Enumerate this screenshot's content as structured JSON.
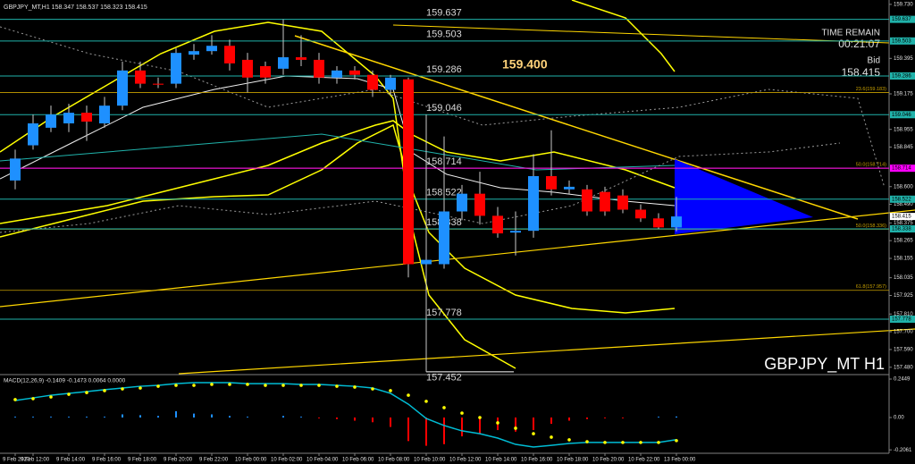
{
  "chart_data": [
    {
      "type": "candlestick",
      "title": "GBPJPY_MT,H1  158.347 158.537 158.323 158.415",
      "watermark": "GBPJPY_MT H1",
      "time_remain_label": "TIME REMAIN",
      "time_remain": "00:21:07",
      "bid_label": "Bid",
      "bid": 158.415,
      "annotation": "159.400",
      "categories": [
        "9 Feb 2023",
        "9 Feb 12:00",
        null,
        "9 Feb 14:00",
        null,
        "9 Feb 16:00",
        null,
        "9 Feb 18:00",
        null,
        "9 Feb 20:00",
        null,
        "9 Feb 22:00",
        null,
        "10 Feb 00:00",
        null,
        "10 Feb 02:00",
        null,
        "10 Feb 04:00",
        null,
        "10 Feb 06:00",
        null,
        "10 Feb 08:00",
        null,
        "10 Feb 10:00",
        null,
        "10 Feb 12:00",
        null,
        "10 Feb 14:00",
        null,
        "10 Feb 16:00",
        null,
        "10 Feb 18:00",
        null,
        "10 Feb 20:00",
        null,
        "10 Feb 22:00",
        null,
        "13 Feb 00:00"
      ],
      "open": [
        158.638,
        158.856,
        158.965,
        158.992,
        159.058,
        158.992,
        159.102,
        159.32,
        159.238,
        159.238,
        159.418,
        159.44,
        159.473,
        159.386,
        159.347,
        159.331,
        159.402,
        159.386,
        159.276,
        159.32,
        159.293,
        159.2,
        159.265,
        158.119,
        158.119,
        158.446,
        158.556,
        158.419,
        158.315,
        158.326,
        158.665,
        158.583,
        158.583,
        158.567,
        158.545,
        158.457,
        158.403,
        158.347
      ],
      "high": [
        158.829,
        159.047,
        159.102,
        159.113,
        159.102,
        159.156,
        159.375,
        159.375,
        159.276,
        159.457,
        159.484,
        159.539,
        159.511,
        159.429,
        159.375,
        159.637,
        159.539,
        159.429,
        159.347,
        159.347,
        159.32,
        159.293,
        159.276,
        159.047,
        158.911,
        158.61,
        158.692,
        158.474,
        158.446,
        158.801,
        158.949,
        158.638,
        158.61,
        158.599,
        158.583,
        158.49,
        158.435,
        158.537
      ],
      "low": [
        158.583,
        158.829,
        158.938,
        158.938,
        158.883,
        158.965,
        159.074,
        159.211,
        159.211,
        159.211,
        159.386,
        159.418,
        159.32,
        159.184,
        159.238,
        159.293,
        159.347,
        159.238,
        159.238,
        159.265,
        159.156,
        159.167,
        158.037,
        157.452,
        158.091,
        158.392,
        158.364,
        158.283,
        158.173,
        158.283,
        158.545,
        158.556,
        158.419,
        158.419,
        158.435,
        158.381,
        158.338,
        158.323
      ],
      "close": [
        158.774,
        158.992,
        159.047,
        159.058,
        159.003,
        159.102,
        159.32,
        159.238,
        159.232,
        159.429,
        159.44,
        159.473,
        159.364,
        159.276,
        159.276,
        159.402,
        159.386,
        159.276,
        159.32,
        159.293,
        159.2,
        159.276,
        158.119,
        158.146,
        158.446,
        158.556,
        158.419,
        158.31,
        158.326,
        158.665,
        158.583,
        158.599,
        158.446,
        158.446,
        158.457,
        158.403,
        158.347,
        158.415
      ],
      "up_color": "#1e90ff",
      "down_color": "#ff0000",
      "wick_color": "#c8c8c8",
      "ylim": [
        157.44,
        159.757
      ],
      "yticks": [
        {
          "value": 159.73,
          "label": "159.730"
        },
        159.395,
        159.175,
        158.955,
        158.845,
        {
          "value": 158.6,
          "label": "158.600"
        },
        {
          "value": 158.49,
          "label": "158.490"
        },
        158.375,
        158.265,
        158.155,
        158.035,
        157.925,
        {
          "value": 157.81,
          "label": "157.810"
        },
        {
          "value": 157.7,
          "label": "157.700"
        },
        {
          "value": 157.59,
          "label": "157.590"
        },
        {
          "value": 157.48,
          "label": "157.480"
        }
      ],
      "grid": false,
      "levels": [
        {
          "value": 159.637,
          "color": "#20b2aa",
          "axis_box": true
        },
        {
          "value": 159.503,
          "color": "#20b2aa",
          "axis_box": true
        },
        {
          "value": 159.286,
          "color": "#20b2aa",
          "axis_box": true
        },
        {
          "value": 159.046,
          "color": "#20b2aa",
          "axis_box": true
        },
        {
          "value": 158.714,
          "color": "#ff00ff",
          "axis_box": true
        },
        {
          "value": 158.522,
          "color": "#20b2aa",
          "axis_box": true
        },
        {
          "value": 158.338,
          "color": "#20b2aa",
          "axis_box": true
        },
        {
          "value": 157.778,
          "color": "#20b2aa",
          "axis_box": true
        },
        {
          "value": 157.452,
          "color": "#ffffff",
          "axis_box": false
        }
      ],
      "fib": [
        {
          "value": 159.183,
          "label": "23.6(159.183)"
        },
        {
          "value": 158.714,
          "label": "50.0(158.714)"
        },
        {
          "value": 158.336,
          "label": "50.0(158.336)"
        },
        {
          "value": 157.957,
          "label": "61.8(157.957)"
        }
      ],
      "fib_color": "#c8a000"
    },
    {
      "type": "macd",
      "title": "MACD(12,26,9) -0.1409 -0.1473 0.0064 0.0000",
      "ylim": [
        -0.2278,
        0.2677
      ],
      "yticks": [
        0.2449,
        {
          "value": 0,
          "label": "0.00"
        },
        -0.2061
      ],
      "series": [
        {
          "style": "bars",
          "up_color": "#1e90ff",
          "down_color": "#ff0000",
          "values": [
            0.005,
            0.005,
            0.005,
            0.005,
            0.005,
            0.005,
            0.02,
            0.015,
            0.01,
            0.04,
            0.025,
            0.02,
            0.01,
            0.005,
            0.0,
            0.01,
            0.005,
            -0.005,
            -0.01,
            -0.02,
            -0.03,
            -0.06,
            -0.15,
            -0.18,
            -0.17,
            -0.12,
            -0.1,
            -0.08,
            -0.09,
            -0.08,
            -0.04,
            -0.02,
            -0.01,
            -0.005,
            -0.005,
            0.0,
            0.005,
            0.0064
          ]
        },
        {
          "style": "line",
          "color": "#00bcd4",
          "values": [
            0.108,
            0.125,
            0.142,
            0.154,
            0.165,
            0.177,
            0.188,
            0.199,
            0.205,
            0.216,
            0.222,
            0.222,
            0.222,
            0.216,
            0.216,
            0.216,
            0.211,
            0.211,
            0.205,
            0.199,
            0.188,
            0.154,
            0.085,
            -0.006,
            -0.051,
            -0.085,
            -0.103,
            -0.131,
            -0.171,
            -0.188,
            -0.177,
            -0.165,
            -0.159,
            -0.159,
            -0.159,
            -0.159,
            -0.159,
            -0.1409
          ]
        },
        {
          "style": "dots",
          "color": "#ffff00",
          "values": [
            0.114,
            0.12,
            0.131,
            0.148,
            0.159,
            0.171,
            0.182,
            0.188,
            0.199,
            0.205,
            0.205,
            0.211,
            0.211,
            0.211,
            0.205,
            0.205,
            0.205,
            0.205,
            0.199,
            0.194,
            0.182,
            0.171,
            0.142,
            0.103,
            0.063,
            0.028,
            0.0,
            -0.034,
            -0.068,
            -0.103,
            -0.125,
            -0.142,
            -0.154,
            -0.159,
            -0.159,
            -0.159,
            -0.159,
            -0.1473
          ]
        }
      ]
    }
  ]
}
